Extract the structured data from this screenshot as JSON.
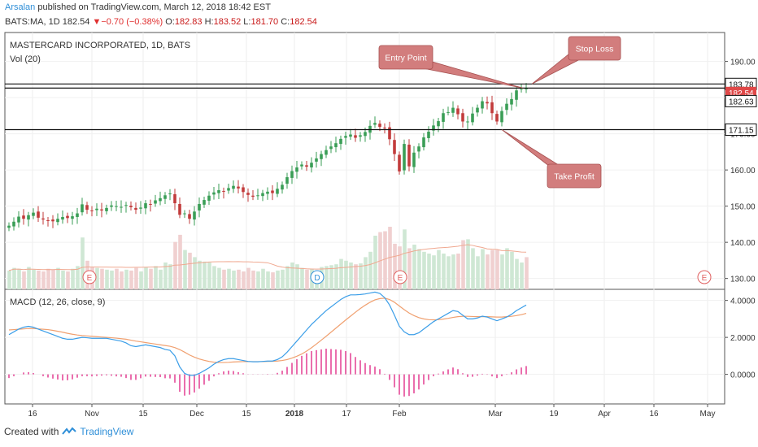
{
  "header": {
    "author": "Arsalan",
    "published": "published on TradingView.com, March 12, 2018 18:42 EST",
    "symbol": "BATS:MA, 1D",
    "last": "182.54",
    "change_arrow": "▼",
    "change": "−0.70 (−0.38%)",
    "o_label": "O:",
    "o": "182.83",
    "h_label": "H:",
    "h": "183.52",
    "l_label": "L:",
    "l": "181.70",
    "c_label": "C:",
    "c": "182.54"
  },
  "footer": {
    "created": "Created with",
    "brand": "TradingView"
  },
  "colors": {
    "up": "#3a9e56",
    "down": "#c23b3b",
    "macd": "#3b9ee8",
    "signal": "#f0a070",
    "hist": "#e0308a",
    "callout": "#d27d7d"
  },
  "chart_data": [
    {
      "type": "candlestick",
      "title": "MASTERCARD INCORPORATED, 1D, BATS",
      "volume_label": "Vol (20)",
      "ylim": [
        127,
        198
      ],
      "y_ticks": [
        "130.00",
        "140.00",
        "150.00",
        "160.00",
        "170.00",
        "180.00",
        "190.00"
      ],
      "x_tick_labels": [
        "16",
        "Nov",
        "15",
        "Dec",
        "15",
        "2018",
        "17",
        "Feb",
        "Mar",
        "19",
        "Apr",
        "16",
        "May"
      ],
      "price_tags": [
        {
          "label": "183.78",
          "value": 183.78,
          "style": "line"
        },
        {
          "label": "182.54",
          "value": 182.54,
          "style": "last"
        },
        {
          "label": "182.63",
          "value": 182.63,
          "style": "line"
        },
        {
          "label": "171.15",
          "value": 171.15,
          "style": "line"
        }
      ],
      "horizontal_lines": [
        183.78,
        182.63,
        171.15
      ],
      "annotations": [
        {
          "text": "Entry Point",
          "target_value": 182.63
        },
        {
          "text": "Stop Loss",
          "target_value": 183.78
        },
        {
          "text": "Take Profit",
          "target_value": 171.15
        }
      ],
      "event_markers": [
        "E",
        "D",
        "E",
        "E"
      ],
      "series": [
        {
          "name": "Close",
          "values": [
            144.6,
            145.7,
            147.1,
            146.5,
            147.5,
            148.2,
            146.8,
            146.3,
            146.0,
            145.8,
            146.5,
            147.0,
            146.7,
            147.2,
            148.0,
            150.5,
            149.0,
            148.6,
            149.3,
            148.8,
            149.5,
            150.2,
            150.0,
            149.8,
            150.3,
            149.7,
            149.0,
            149.6,
            150.8,
            150.4,
            151.6,
            152.2,
            153.0,
            153.5,
            150.8,
            147.6,
            148.0,
            146.5,
            148.5,
            150.6,
            151.7,
            152.9,
            153.8,
            154.4,
            154.0,
            155.0,
            155.6,
            154.9,
            153.9,
            153.1,
            152.6,
            153.0,
            153.6,
            154.0,
            153.6,
            154.8,
            155.9,
            158.0,
            159.7,
            160.7,
            161.5,
            160.9,
            162.0,
            163.2,
            164.4,
            165.5,
            166.5,
            167.4,
            168.6,
            169.4,
            169.8,
            168.9,
            169.6,
            170.5,
            172.2,
            173.0,
            171.9,
            171.5,
            168.5,
            164.4,
            159.6,
            167.2,
            161.0,
            164.8,
            166.5,
            169.0,
            170.6,
            172.3,
            173.5,
            175.7,
            176.0,
            177.2,
            175.4,
            173.4,
            173.4,
            175.6,
            177.2,
            179.0,
            178.4,
            175.7,
            173.4,
            176.3,
            178.3,
            179.6,
            182.0,
            182.6,
            182.54
          ]
        },
        {
          "name": "Volume (shares, approx.)",
          "values": [
            2.1,
            2.4,
            2.3,
            2.0,
            2.5,
            2.2,
            2.1,
            2.0,
            2.3,
            2.2,
            2.4,
            2.1,
            2.0,
            2.3,
            2.6,
            5.8,
            3.2,
            2.5,
            2.4,
            2.3,
            2.2,
            2.1,
            2.3,
            2.0,
            2.2,
            2.1,
            2.4,
            2.0,
            2.5,
            2.3,
            2.6,
            2.2,
            3.0,
            2.8,
            5.3,
            6.1,
            4.4,
            4.1,
            3.6,
            3.2,
            3.1,
            3.0,
            2.6,
            2.4,
            2.2,
            2.3,
            2.1,
            2.2,
            2.0,
            2.4,
            2.1,
            2.0,
            2.3,
            2.0,
            1.9,
            2.1,
            2.2,
            2.6,
            3.0,
            2.8,
            2.4,
            2.2,
            2.3,
            2.1,
            2.5,
            2.6,
            2.7,
            2.8,
            3.4,
            3.2,
            3.0,
            2.8,
            2.9,
            3.6,
            4.2,
            6.0,
            6.4,
            6.5,
            7.0,
            5.1,
            4.8,
            6.7,
            4.6,
            5.0,
            4.5,
            4.2,
            4.0,
            3.8,
            4.4,
            4.0,
            3.7,
            3.9,
            4.0,
            5.5,
            5.6,
            4.6,
            3.7,
            4.5,
            3.9,
            4.4,
            4.4,
            3.9,
            4.6,
            4.2,
            3.4,
            3.0,
            3.6
          ]
        }
      ]
    },
    {
      "type": "line",
      "title": "MACD (12, 26, close, 9)",
      "ylim": [
        -1.6,
        4.6
      ],
      "y_ticks": [
        "4.0000",
        "2.0000",
        "0.0000"
      ],
      "series": [
        {
          "name": "MACD",
          "values": [
            2.15,
            2.3,
            2.45,
            2.55,
            2.6,
            2.55,
            2.45,
            2.35,
            2.25,
            2.15,
            2.05,
            1.95,
            1.9,
            1.9,
            1.95,
            2.0,
            1.98,
            1.95,
            1.95,
            1.95,
            1.95,
            1.9,
            1.85,
            1.8,
            1.7,
            1.55,
            1.5,
            1.55,
            1.6,
            1.55,
            1.5,
            1.45,
            1.35,
            1.3,
            1.0,
            0.4,
            0.05,
            -0.05,
            -0.05,
            0.05,
            0.2,
            0.35,
            0.55,
            0.7,
            0.8,
            0.85,
            0.85,
            0.8,
            0.75,
            0.7,
            0.68,
            0.68,
            0.7,
            0.72,
            0.72,
            0.8,
            0.95,
            1.2,
            1.5,
            1.8,
            2.1,
            2.4,
            2.7,
            2.95,
            3.2,
            3.45,
            3.65,
            3.85,
            4.05,
            4.2,
            4.3,
            4.3,
            4.32,
            4.35,
            4.4,
            4.45,
            4.38,
            4.15,
            3.75,
            3.2,
            2.6,
            2.3,
            2.15,
            2.15,
            2.25,
            2.45,
            2.65,
            2.85,
            3.0,
            3.15,
            3.3,
            3.45,
            3.4,
            3.2,
            3.0,
            3.0,
            3.05,
            3.15,
            3.1,
            3.0,
            2.9,
            3.0,
            3.1,
            3.25,
            3.45,
            3.6,
            3.75
          ]
        },
        {
          "name": "Signal",
          "values": [
            2.4,
            2.42,
            2.44,
            2.46,
            2.48,
            2.48,
            2.46,
            2.44,
            2.42,
            2.38,
            2.33,
            2.28,
            2.22,
            2.17,
            2.13,
            2.1,
            2.08,
            2.06,
            2.04,
            2.02,
            2.0,
            1.98,
            1.96,
            1.93,
            1.9,
            1.85,
            1.8,
            1.76,
            1.72,
            1.68,
            1.64,
            1.6,
            1.56,
            1.52,
            1.45,
            1.34,
            1.2,
            1.05,
            0.93,
            0.83,
            0.76,
            0.7,
            0.66,
            0.64,
            0.64,
            0.65,
            0.67,
            0.68,
            0.69,
            0.69,
            0.69,
            0.69,
            0.69,
            0.7,
            0.71,
            0.72,
            0.75,
            0.8,
            0.88,
            0.98,
            1.1,
            1.26,
            1.44,
            1.64,
            1.85,
            2.06,
            2.28,
            2.5,
            2.72,
            2.94,
            3.15,
            3.36,
            3.56,
            3.74,
            3.9,
            4.03,
            4.1,
            4.12,
            4.05,
            3.9,
            3.7,
            3.5,
            3.32,
            3.18,
            3.07,
            3.0,
            2.96,
            2.95,
            2.96,
            2.99,
            3.03,
            3.08,
            3.12,
            3.14,
            3.14,
            3.13,
            3.12,
            3.12,
            3.12,
            3.11,
            3.1,
            3.1,
            3.12,
            3.14,
            3.18,
            3.23,
            3.3
          ]
        },
        {
          "name": "Histogram",
          "values": [
            -0.2,
            -0.1,
            0.0,
            0.1,
            0.12,
            0.07,
            0.0,
            -0.1,
            -0.17,
            -0.23,
            -0.28,
            -0.33,
            -0.32,
            -0.27,
            -0.18,
            -0.1,
            -0.1,
            -0.11,
            -0.09,
            -0.07,
            -0.05,
            -0.08,
            -0.11,
            -0.13,
            -0.2,
            -0.3,
            -0.3,
            -0.21,
            -0.12,
            -0.13,
            -0.14,
            -0.15,
            -0.21,
            -0.22,
            -0.45,
            -0.94,
            -1.15,
            -1.1,
            -0.98,
            -0.78,
            -0.56,
            -0.35,
            -0.11,
            0.06,
            0.16,
            0.2,
            0.18,
            0.12,
            0.06,
            0.01,
            -0.01,
            -0.01,
            0.01,
            0.02,
            0.01,
            0.08,
            0.2,
            0.4,
            0.62,
            0.82,
            1.0,
            1.14,
            1.26,
            1.31,
            1.35,
            1.39,
            1.37,
            1.35,
            1.33,
            1.26,
            1.15,
            0.94,
            0.76,
            0.61,
            0.5,
            0.42,
            0.28,
            0.03,
            -0.3,
            -0.7,
            -1.1,
            -1.2,
            -1.17,
            -1.03,
            -0.82,
            -0.55,
            -0.31,
            -0.1,
            0.04,
            0.16,
            0.27,
            0.37,
            0.28,
            0.06,
            -0.14,
            -0.13,
            -0.07,
            0.03,
            -0.02,
            -0.11,
            -0.2,
            -0.1,
            -0.02,
            0.11,
            0.27,
            0.37,
            0.45
          ]
        }
      ]
    }
  ]
}
